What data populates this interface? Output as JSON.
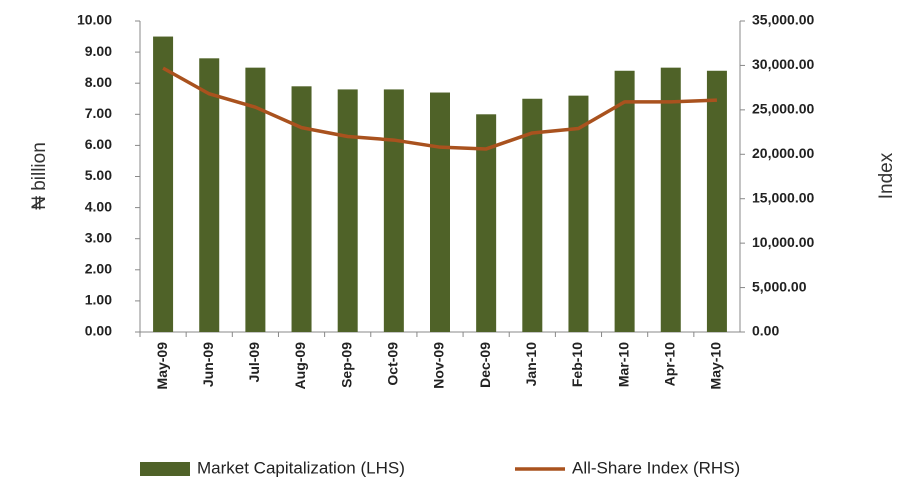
{
  "chart_data": {
    "type": "bar",
    "categories": [
      "May-09",
      "Jun-09",
      "Jul-09",
      "Aug-09",
      "Sep-09",
      "Oct-09",
      "Nov-09",
      "Dec-09",
      "Jan-10",
      "Feb-10",
      "Mar-10",
      "Apr-10",
      "May-10"
    ],
    "y_label": "₦ billion",
    "y2_label": "Index",
    "series": [
      {
        "name": "Market Capitalization (LHS)",
        "type": "bar",
        "color": "#4f6228",
        "values": [
          9.5,
          8.8,
          8.5,
          7.9,
          7.8,
          7.8,
          7.7,
          7.0,
          7.5,
          7.6,
          8.4,
          8.5,
          8.4
        ]
      },
      {
        "name": "All-Share Index (RHS)",
        "type": "line",
        "axis": "y2",
        "color": "#a9521e",
        "values": [
          29700,
          26800,
          25300,
          23000,
          22000,
          21600,
          20800,
          20600,
          22400,
          22900,
          25900,
          25900,
          26100
        ]
      }
    ],
    "ylim": [
      0,
      10
    ],
    "yticks": [
      {
        "value": 0,
        "label": "0.00"
      },
      {
        "value": 1,
        "label": "1.00"
      },
      {
        "value": 2,
        "label": "2.00"
      },
      {
        "value": 3,
        "label": "3.00"
      },
      {
        "value": 4,
        "label": "4.00"
      },
      {
        "value": 5,
        "label": "5.00"
      },
      {
        "value": 6,
        "label": "6.00"
      },
      {
        "value": 7,
        "label": "7.00"
      },
      {
        "value": 8,
        "label": "8.00"
      },
      {
        "value": 9,
        "label": "9.00"
      },
      {
        "value": 10,
        "label": "10.00"
      }
    ],
    "y2lim": [
      0,
      35000
    ],
    "y2ticks": [
      {
        "value": 0,
        "label": "0.00"
      },
      {
        "value": 5000,
        "label": "5,000.00"
      },
      {
        "value": 10000,
        "label": "10,000.00"
      },
      {
        "value": 15000,
        "label": "15,000.00"
      },
      {
        "value": 20000,
        "label": "20,000.00"
      },
      {
        "value": 25000,
        "label": "25,000.00"
      },
      {
        "value": 30000,
        "label": "30,000.00"
      },
      {
        "value": 35000,
        "label": "35,000.00"
      }
    ],
    "legend": "bottom"
  }
}
